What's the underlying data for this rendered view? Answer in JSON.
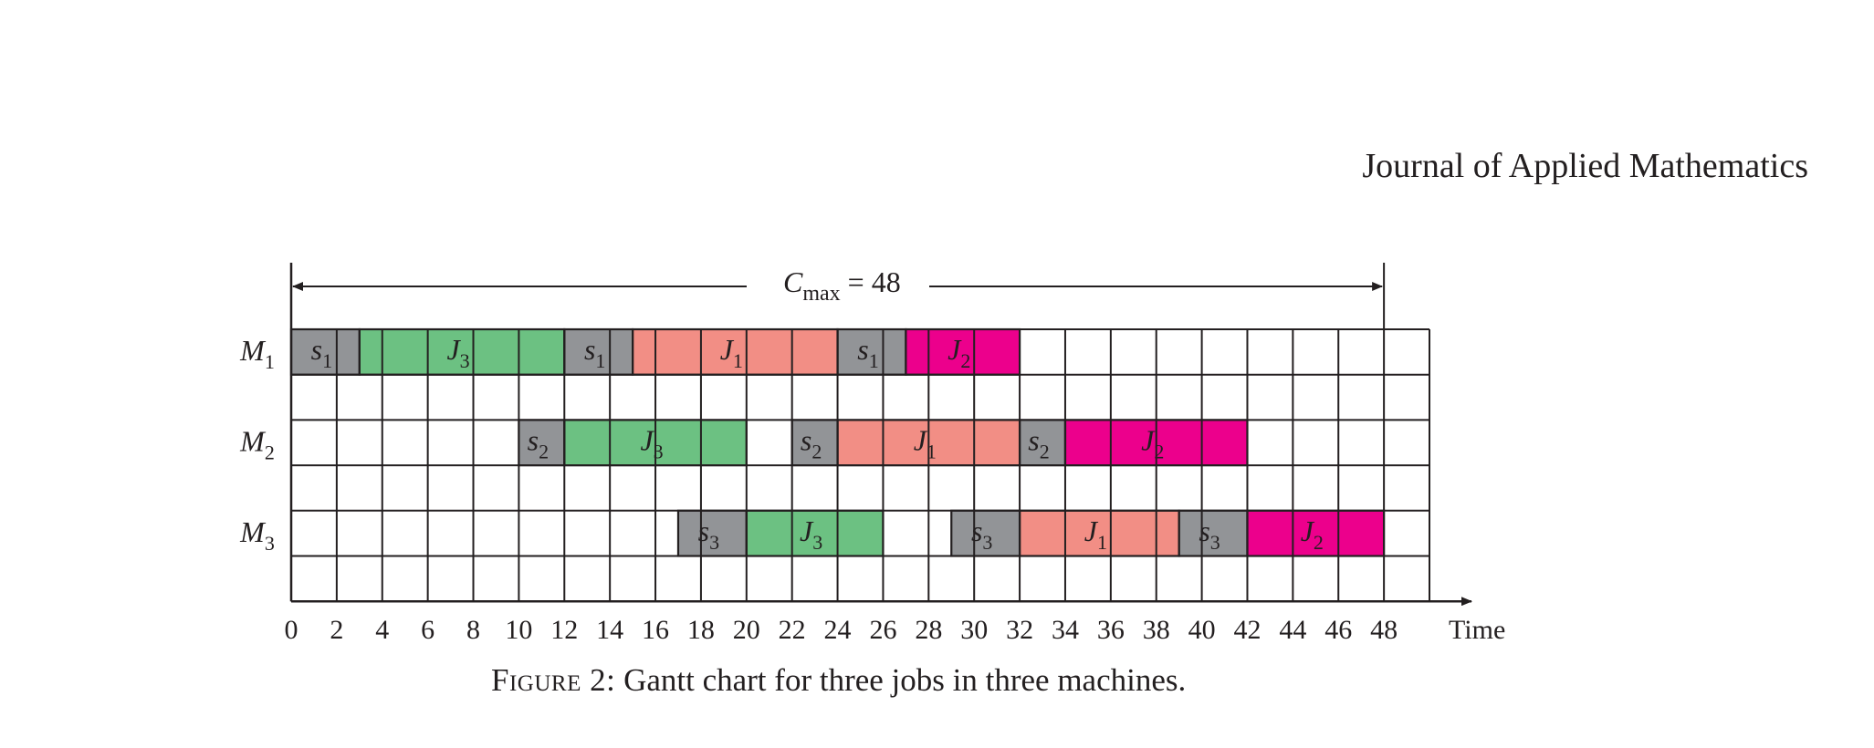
{
  "header": {
    "journal": "Journal of Applied Mathematics"
  },
  "caption": {
    "label": "Figure 2:",
    "text": "Gantt chart for three jobs in three machines."
  },
  "colors": {
    "setup": "#929497",
    "J1": "#f28e85",
    "J2": "#ec008c",
    "J3": "#6cc182",
    "grid": "#231f20"
  },
  "chart_data": {
    "type": "gantt",
    "makespan": {
      "label": "C",
      "subscript": "max",
      "value_text": "= 48",
      "value": 48
    },
    "xlim": [
      0,
      50
    ],
    "x_ticks": [
      0,
      2,
      4,
      6,
      8,
      10,
      12,
      14,
      16,
      18,
      20,
      22,
      24,
      26,
      28,
      30,
      32,
      34,
      36,
      38,
      40,
      42,
      44,
      46,
      48
    ],
    "xlabel": "Time",
    "grid": true,
    "machines": [
      {
        "name": "M",
        "sub": "1"
      },
      {
        "name": "M",
        "sub": "2"
      },
      {
        "name": "M",
        "sub": "3"
      }
    ],
    "tasks": [
      {
        "machine": 0,
        "start": 0,
        "end": 3,
        "kind": "setup",
        "label": "s",
        "sub": "1"
      },
      {
        "machine": 0,
        "start": 3,
        "end": 12,
        "kind": "J3",
        "label": "J",
        "sub": "3"
      },
      {
        "machine": 0,
        "start": 12,
        "end": 15,
        "kind": "setup",
        "label": "s",
        "sub": "1"
      },
      {
        "machine": 0,
        "start": 15,
        "end": 24,
        "kind": "J1",
        "label": "J",
        "sub": "1"
      },
      {
        "machine": 0,
        "start": 24,
        "end": 27,
        "kind": "setup",
        "label": "s",
        "sub": "1"
      },
      {
        "machine": 0,
        "start": 27,
        "end": 32,
        "kind": "J2",
        "label": "J",
        "sub": "2"
      },
      {
        "machine": 1,
        "start": 10,
        "end": 12,
        "kind": "setup",
        "label": "s",
        "sub": "2"
      },
      {
        "machine": 1,
        "start": 12,
        "end": 20,
        "kind": "J3",
        "label": "J",
        "sub": "3"
      },
      {
        "machine": 1,
        "start": 22,
        "end": 24,
        "kind": "setup",
        "label": "s",
        "sub": "2"
      },
      {
        "machine": 1,
        "start": 24,
        "end": 32,
        "kind": "J1",
        "label": "J",
        "sub": "1"
      },
      {
        "machine": 1,
        "start": 32,
        "end": 34,
        "kind": "setup",
        "label": "s",
        "sub": "2"
      },
      {
        "machine": 1,
        "start": 34,
        "end": 42,
        "kind": "J2",
        "label": "J",
        "sub": "2"
      },
      {
        "machine": 2,
        "start": 17,
        "end": 20,
        "kind": "setup",
        "label": "s",
        "sub": "3"
      },
      {
        "machine": 2,
        "start": 20,
        "end": 26,
        "kind": "J3",
        "label": "J",
        "sub": "3"
      },
      {
        "machine": 2,
        "start": 29,
        "end": 32,
        "kind": "setup",
        "label": "s",
        "sub": "3"
      },
      {
        "machine": 2,
        "start": 32,
        "end": 39,
        "kind": "J1",
        "label": "J",
        "sub": "1"
      },
      {
        "machine": 2,
        "start": 39,
        "end": 42,
        "kind": "setup",
        "label": "s",
        "sub": "3"
      },
      {
        "machine": 2,
        "start": 42,
        "end": 48,
        "kind": "J2",
        "label": "J",
        "sub": "2"
      }
    ]
  }
}
